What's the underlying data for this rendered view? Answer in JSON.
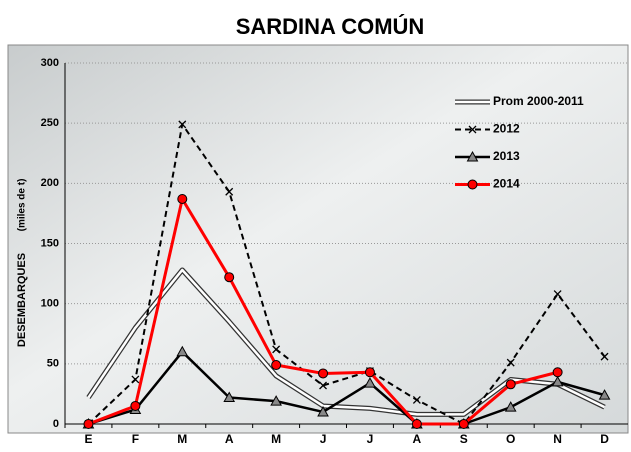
{
  "chart_data": {
    "type": "line",
    "title": "SARDINA COMÚN",
    "y_label": "DESEMBARQUES",
    "y_label_unit": "(miles de t)",
    "categories": [
      "E",
      "F",
      "M",
      "A",
      "M",
      "J",
      "J",
      "A",
      "S",
      "O",
      "N",
      "D"
    ],
    "ylim": [
      0,
      300
    ],
    "yticks": [
      0,
      50,
      100,
      150,
      200,
      250,
      300
    ],
    "grid": true,
    "legend": "top-right",
    "series": [
      {
        "name": "Prom 2000-2011",
        "color": "#333333",
        "line_style": "double",
        "marker": "none",
        "values": [
          22,
          80,
          128,
          85,
          40,
          15,
          13,
          8,
          8,
          37,
          33,
          14
        ]
      },
      {
        "name": "2012",
        "color": "#000000",
        "line_style": "dashed",
        "marker": "x",
        "values": [
          0,
          37,
          249,
          193,
          62,
          32,
          44,
          20,
          0,
          51,
          108,
          56
        ]
      },
      {
        "name": "2013",
        "color": "#000000",
        "line_style": "solid",
        "marker": "triangle",
        "values": [
          0,
          12,
          60,
          22,
          19,
          10,
          34,
          0,
          0,
          14,
          35,
          24
        ]
      },
      {
        "name": "2014",
        "color": "#ff0000",
        "line_style": "solid",
        "marker": "circle",
        "values": [
          0,
          15,
          187,
          122,
          49,
          42,
          43,
          0,
          0,
          33,
          43,
          null
        ]
      }
    ]
  }
}
